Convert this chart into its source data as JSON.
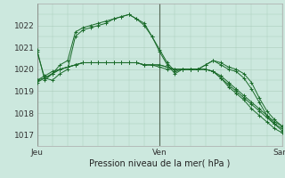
{
  "title": "",
  "xlabel": "Pression niveau de la mer( hPa )",
  "bg_color": "#cce8de",
  "grid_color": "#aaccbb",
  "line_color": "#1a6b2a",
  "ylim": [
    1016.5,
    1023.0
  ],
  "xlim": [
    0,
    48
  ],
  "xtick_positions": [
    0,
    24,
    48
  ],
  "xtick_labels": [
    "Jeu",
    "Ven",
    "Sam"
  ],
  "ytick_positions": [
    1017,
    1018,
    1019,
    1020,
    1021,
    1022
  ],
  "vline_color": "#556655",
  "series": [
    [
      1020.8,
      1019.6,
      1019.5,
      1019.8,
      1020.0,
      1021.5,
      1021.8,
      1021.9,
      1022.0,
      1022.1,
      1022.3,
      1022.4,
      1022.5,
      1022.3,
      1022.1,
      1021.5,
      1020.9,
      1020.3,
      1019.9,
      1020.0,
      1020.0,
      1020.0,
      1020.2,
      1020.4,
      1020.2,
      1020.0,
      1019.9,
      1019.6,
      1019.1,
      1018.5,
      1017.9,
      1017.5,
      1017.2
    ],
    [
      1019.5,
      1019.7,
      1019.9,
      1020.0,
      1020.1,
      1020.2,
      1020.3,
      1020.3,
      1020.3,
      1020.3,
      1020.3,
      1020.3,
      1020.3,
      1020.3,
      1020.2,
      1020.2,
      1020.2,
      1020.1,
      1020.0,
      1020.0,
      1020.0,
      1020.0,
      1020.0,
      1019.9,
      1019.7,
      1019.4,
      1019.1,
      1018.8,
      1018.5,
      1018.2,
      1017.9,
      1017.6,
      1017.4
    ],
    [
      1019.5,
      1019.6,
      1019.8,
      1020.0,
      1020.1,
      1020.2,
      1020.3,
      1020.3,
      1020.3,
      1020.3,
      1020.3,
      1020.3,
      1020.3,
      1020.3,
      1020.2,
      1020.2,
      1020.2,
      1020.1,
      1020.0,
      1020.0,
      1020.0,
      1020.0,
      1020.0,
      1019.9,
      1019.6,
      1019.3,
      1019.0,
      1018.7,
      1018.4,
      1018.1,
      1017.8,
      1017.5,
      1017.3
    ],
    [
      1019.4,
      1019.6,
      1019.8,
      1020.0,
      1020.1,
      1020.2,
      1020.3,
      1020.3,
      1020.3,
      1020.3,
      1020.3,
      1020.3,
      1020.3,
      1020.3,
      1020.2,
      1020.2,
      1020.1,
      1020.0,
      1020.0,
      1020.0,
      1020.0,
      1020.0,
      1020.0,
      1019.9,
      1019.6,
      1019.2,
      1018.9,
      1018.6,
      1018.2,
      1017.9,
      1017.6,
      1017.3,
      1017.1
    ],
    [
      1020.9,
      1019.5,
      1019.8,
      1020.2,
      1020.4,
      1021.7,
      1021.9,
      1022.0,
      1022.1,
      1022.2,
      1022.3,
      1022.4,
      1022.5,
      1022.3,
      1022.0,
      1021.5,
      1020.8,
      1020.2,
      1019.8,
      1020.0,
      1020.0,
      1020.0,
      1020.2,
      1020.4,
      1020.3,
      1020.1,
      1020.0,
      1019.8,
      1019.4,
      1018.7,
      1018.1,
      1017.7,
      1017.4
    ]
  ]
}
